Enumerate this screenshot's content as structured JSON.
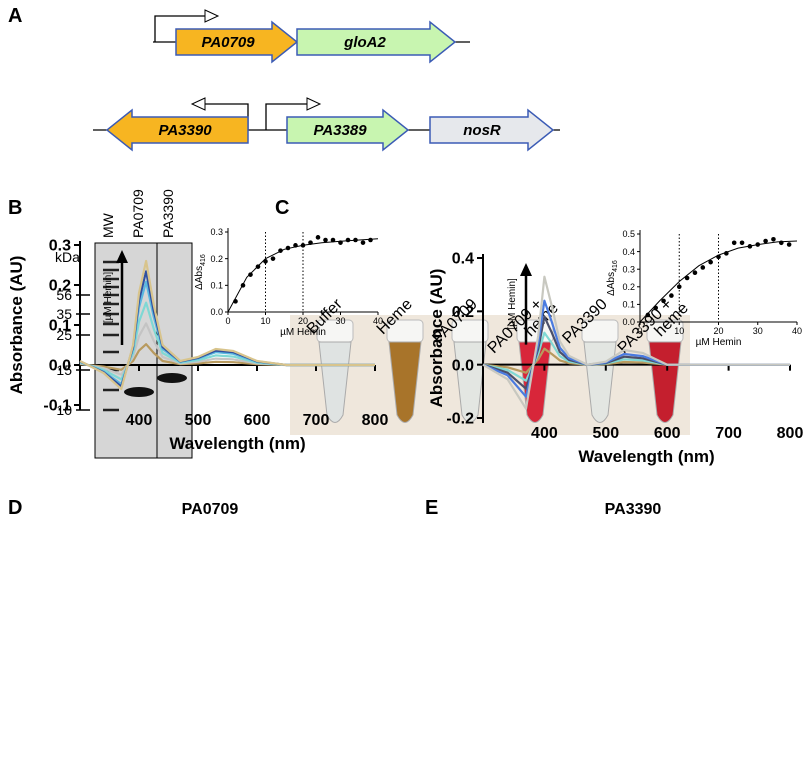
{
  "panel_labels": [
    "A",
    "B",
    "C",
    "D",
    "E"
  ],
  "panel_a": {
    "genes": [
      "PA0709",
      "gloA2",
      "PA3390",
      "PA3389",
      "nosR"
    ]
  },
  "panel_b": {
    "unit": "kDa",
    "lanes": [
      "MW",
      "PA0709",
      "PA3390"
    ],
    "markers": [
      56,
      35,
      25,
      15,
      10
    ]
  },
  "panel_c": {
    "samples": [
      [
        "Buffer"
      ],
      [
        "Heme"
      ],
      [
        "PA0709"
      ],
      [
        "PA0709 +",
        "heme"
      ],
      [
        "PA3390"
      ],
      [
        "PA3390 +",
        "heme"
      ]
    ]
  },
  "chart_data": [
    {
      "type": "line",
      "title": "PA0709",
      "xlabel": "Wavelength (nm)",
      "ylabel": "Absorbance (AU)",
      "annotation": "[µM Hemin]",
      "x": [
        300,
        340,
        370,
        390,
        400,
        412,
        425,
        440,
        470,
        500,
        530,
        560,
        600,
        650,
        700,
        800
      ],
      "series": [
        {
          "color": "#b89a5e",
          "values": [
            0.002,
            -0.004,
            -0.012,
            0.01,
            0.036,
            0.052,
            0.03,
            0.01,
            0.002,
            0.004,
            0.008,
            0.007,
            0.002,
            0,
            0,
            0
          ]
        },
        {
          "color": "#c4c4c4",
          "values": [
            0.004,
            -0.008,
            -0.024,
            0.02,
            0.072,
            0.104,
            0.06,
            0.02,
            0.004,
            0.008,
            0.016,
            0.014,
            0.004,
            0,
            0,
            0
          ]
        },
        {
          "color": "#7fd8d4",
          "values": [
            0.006,
            -0.012,
            -0.036,
            0.03,
            0.108,
            0.156,
            0.09,
            0.03,
            0.006,
            0.012,
            0.024,
            0.021,
            0.006,
            0,
            0,
            0
          ]
        },
        {
          "color": "#5bb8e0",
          "values": [
            0.008,
            -0.016,
            -0.048,
            0.04,
            0.144,
            0.208,
            0.12,
            0.04,
            0.008,
            0.016,
            0.032,
            0.028,
            0.008,
            0,
            0,
            0
          ]
        },
        {
          "color": "#2f4fa0",
          "values": [
            0.009,
            -0.018,
            -0.054,
            0.045,
            0.162,
            0.234,
            0.135,
            0.045,
            0.009,
            0.018,
            0.036,
            0.032,
            0.009,
            0,
            0,
            0
          ]
        },
        {
          "color": "#d8c48c",
          "values": [
            0.01,
            -0.02,
            -0.06,
            0.05,
            0.18,
            0.26,
            0.15,
            0.05,
            0.01,
            0.02,
            0.04,
            0.035,
            0.01,
            0,
            0,
            0
          ]
        }
      ],
      "xlim": [
        300,
        800
      ],
      "xticks": [
        400,
        500,
        600,
        700,
        800
      ],
      "ylim": [
        -0.1,
        0.3
      ],
      "yticks": [
        -0.1,
        {
          "value": 0,
          "label": "0.0"
        },
        0.1,
        0.2,
        0.3
      ]
    },
    {
      "type": "scatter",
      "xlabel": "µM Hemin",
      "ylabel": "ΔAbs",
      "ylabel_sub": "416",
      "x": [
        2,
        4,
        6,
        8,
        10,
        12,
        14,
        16,
        18,
        20,
        22,
        24,
        26,
        28,
        30,
        32,
        34,
        36,
        38
      ],
      "values": [
        0.04,
        0.1,
        0.14,
        0.17,
        0.19,
        0.2,
        0.23,
        0.24,
        0.25,
        0.25,
        0.26,
        0.28,
        0.27,
        0.27,
        0.26,
        0.27,
        0.27,
        0.26,
        0.27
      ],
      "fit": {
        "x": [
          0,
          5,
          10,
          15,
          20,
          25,
          30,
          35,
          40
        ],
        "values": [
          0,
          0.13,
          0.2,
          0.235,
          0.25,
          0.26,
          0.265,
          0.27,
          0.275
        ]
      },
      "vlines": [
        10,
        20
      ],
      "xlim": [
        0,
        40
      ],
      "xticks": [
        0,
        10,
        20,
        30,
        40
      ],
      "ylim": [
        0,
        0.3
      ],
      "yticks": [
        {
          "value": 0,
          "label": "0.0"
        },
        0.1,
        0.2,
        0.3
      ]
    },
    {
      "type": "line",
      "title": "PA3390",
      "xlabel": "Wavelength (nm)",
      "ylabel": "Absorbance (AU)",
      "annotation": "[µM Hemin]",
      "x": [
        300,
        340,
        370,
        390,
        400,
        412,
        425,
        440,
        470,
        500,
        530,
        560,
        600,
        650,
        700,
        800
      ],
      "series": [
        {
          "color": "#b89a5e",
          "values": [
            0,
            -0.01,
            -0.03,
            0.02,
            0.06,
            0.04,
            0.016,
            0.006,
            0,
            0.002,
            0.01,
            0.008,
            0,
            0,
            0,
            0
          ]
        },
        {
          "color": "#7fd8d4",
          "values": [
            0,
            -0.02,
            -0.06,
            0.04,
            0.12,
            0.08,
            0.032,
            0.012,
            0,
            0.004,
            0.02,
            0.016,
            0,
            0,
            0,
            0
          ]
        },
        {
          "color": "#4a4f6a",
          "values": [
            0,
            -0.03,
            -0.09,
            0.06,
            0.18,
            0.12,
            0.048,
            0.018,
            0,
            0.006,
            0.03,
            0.024,
            0,
            0,
            0,
            0
          ]
        },
        {
          "color": "#4a7be0",
          "values": [
            0,
            -0.04,
            -0.12,
            0.08,
            0.24,
            0.16,
            0.064,
            0.024,
            0,
            0.008,
            0.04,
            0.032,
            0,
            0,
            0,
            0
          ]
        },
        {
          "color": "#c8c8c0",
          "values": [
            0,
            -0.055,
            -0.165,
            0.11,
            0.33,
            0.22,
            0.088,
            0.033,
            0,
            0.011,
            0.055,
            0.044,
            0,
            0,
            0,
            0
          ]
        }
      ],
      "xlim": [
        300,
        800
      ],
      "xticks": [
        400,
        500,
        600,
        700,
        800
      ],
      "ylim": [
        -0.2,
        0.4
      ],
      "yticks": [
        -0.2,
        {
          "value": 0,
          "label": "0.0"
        },
        0.2,
        0.4
      ]
    },
    {
      "type": "scatter",
      "xlabel": "µM Hemin",
      "ylabel": "ΔAbs",
      "ylabel_sub": "416",
      "x": [
        2,
        4,
        6,
        8,
        10,
        12,
        14,
        16,
        18,
        20,
        22,
        24,
        26,
        28,
        30,
        32,
        34,
        36,
        38
      ],
      "values": [
        0.04,
        0.08,
        0.12,
        0.15,
        0.2,
        0.25,
        0.28,
        0.31,
        0.34,
        0.37,
        0.39,
        0.45,
        0.45,
        0.43,
        0.44,
        0.46,
        0.47,
        0.45,
        0.44
      ],
      "fit": {
        "x": [
          0,
          5,
          10,
          15,
          20,
          25,
          30,
          35,
          40
        ],
        "values": [
          0,
          0.12,
          0.23,
          0.32,
          0.38,
          0.42,
          0.44,
          0.455,
          0.46
        ]
      },
      "vlines": [
        10,
        20
      ],
      "xlim": [
        0,
        40
      ],
      "xticks": [
        0,
        10,
        20,
        30,
        40
      ],
      "ylim": [
        0,
        0.5
      ],
      "yticks": [
        {
          "value": 0,
          "label": "0.0"
        },
        0.1,
        0.2,
        0.3,
        0.4,
        0.5
      ]
    }
  ]
}
